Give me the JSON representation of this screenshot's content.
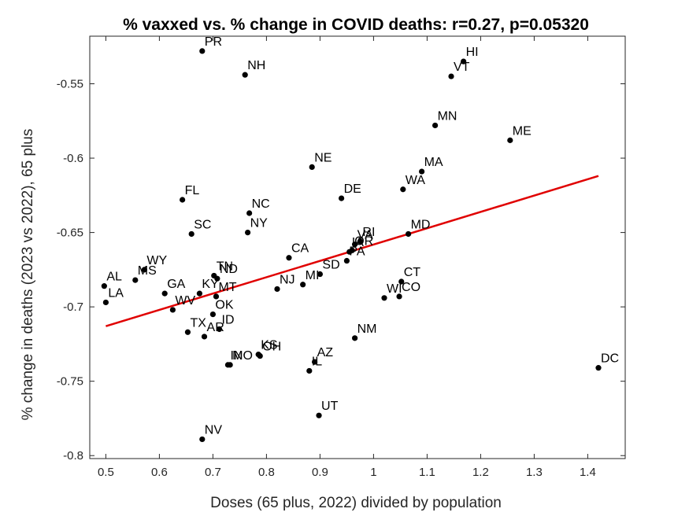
{
  "chart_data": {
    "type": "scatter",
    "title": "% vaxxed vs. % change in COVID deaths: r=0.27, p=0.05320",
    "xlabel": "Doses (65 plus, 2022) divided by population",
    "ylabel": "% change in deaths (2023 vs 2022), 65 plus",
    "xlim": [
      0.47,
      1.47
    ],
    "ylim": [
      -0.802,
      -0.518
    ],
    "xticks": [
      0.5,
      0.6,
      0.7,
      0.8,
      0.9,
      1.0,
      1.1,
      1.2,
      1.3,
      1.4
    ],
    "xtick_labels": [
      "0.5",
      "0.6",
      "0.7",
      "0.8",
      "0.9",
      "1",
      "1.1",
      "1.2",
      "1.3",
      "1.4"
    ],
    "yticks": [
      -0.8,
      -0.75,
      -0.7,
      -0.65,
      -0.6,
      -0.55
    ],
    "ytick_labels": [
      "-0.8",
      "-0.75",
      "-0.7",
      "-0.65",
      "-0.6",
      "-0.55"
    ],
    "grid": false,
    "marker_color": "#000000",
    "fit_color": "#e00000",
    "fit_line": {
      "x": [
        0.5,
        1.42
      ],
      "y": [
        -0.713,
        -0.612
      ]
    },
    "points": [
      {
        "label": "PR",
        "x": 0.68,
        "y": -0.528
      },
      {
        "label": "NH",
        "x": 0.76,
        "y": -0.544
      },
      {
        "label": "HI",
        "x": 1.168,
        "y": -0.535
      },
      {
        "label": "VT",
        "x": 1.145,
        "y": -0.545
      },
      {
        "label": "MN",
        "x": 1.115,
        "y": -0.578
      },
      {
        "label": "ME",
        "x": 1.255,
        "y": -0.588
      },
      {
        "label": "NE",
        "x": 0.885,
        "y": -0.606
      },
      {
        "label": "MA",
        "x": 1.09,
        "y": -0.609
      },
      {
        "label": "WA",
        "x": 1.055,
        "y": -0.621
      },
      {
        "label": "DE",
        "x": 0.94,
        "y": -0.627
      },
      {
        "label": "FL",
        "x": 0.643,
        "y": -0.628
      },
      {
        "label": "NC",
        "x": 0.768,
        "y": -0.637
      },
      {
        "label": "SC",
        "x": 0.66,
        "y": -0.651
      },
      {
        "label": "NY",
        "x": 0.765,
        "y": -0.65
      },
      {
        "label": "MD",
        "x": 1.065,
        "y": -0.651
      },
      {
        "label": "RI",
        "x": 0.975,
        "y": -0.656
      },
      {
        "label": "VA",
        "x": 0.965,
        "y": -0.658
      },
      {
        "label": "IA",
        "x": 0.955,
        "y": -0.663
      },
      {
        "label": "OR",
        "x": 0.96,
        "y": -0.662
      },
      {
        "label": "CA",
        "x": 0.842,
        "y": -0.667
      },
      {
        "label": "PA",
        "x": 0.95,
        "y": -0.669
      },
      {
        "label": "SD",
        "x": 0.9,
        "y": -0.678
      },
      {
        "label": "TN",
        "x": 0.702,
        "y": -0.679
      },
      {
        "label": "ND",
        "x": 0.708,
        "y": -0.681
      },
      {
        "label": "WY",
        "x": 0.572,
        "y": -0.675
      },
      {
        "label": "MS",
        "x": 0.555,
        "y": -0.682
      },
      {
        "label": "AL",
        "x": 0.497,
        "y": -0.686
      },
      {
        "label": "CT",
        "x": 1.052,
        "y": -0.683
      },
      {
        "label": "MI",
        "x": 0.868,
        "y": -0.685
      },
      {
        "label": "NJ",
        "x": 0.82,
        "y": -0.688
      },
      {
        "label": "CO",
        "x": 1.048,
        "y": -0.693
      },
      {
        "label": "WI",
        "x": 1.02,
        "y": -0.694
      },
      {
        "label": "GA",
        "x": 0.61,
        "y": -0.691
      },
      {
        "label": "KY",
        "x": 0.675,
        "y": -0.691
      },
      {
        "label": "MT",
        "x": 0.706,
        "y": -0.693
      },
      {
        "label": "LA",
        "x": 0.5,
        "y": -0.697
      },
      {
        "label": "WV",
        "x": 0.625,
        "y": -0.702
      },
      {
        "label": "OK",
        "x": 0.7,
        "y": -0.705
      },
      {
        "label": "TX",
        "x": 0.653,
        "y": -0.717
      },
      {
        "label": "AR",
        "x": 0.684,
        "y": -0.72
      },
      {
        "label": "ID",
        "x": 0.712,
        "y": -0.715
      },
      {
        "label": "NM",
        "x": 0.965,
        "y": -0.721
      },
      {
        "label": "KS",
        "x": 0.785,
        "y": -0.732
      },
      {
        "label": "OH",
        "x": 0.788,
        "y": -0.733
      },
      {
        "label": "IN",
        "x": 0.728,
        "y": -0.739
      },
      {
        "label": "MO",
        "x": 0.732,
        "y": -0.739
      },
      {
        "label": "AZ",
        "x": 0.89,
        "y": -0.737
      },
      {
        "label": "IL",
        "x": 0.88,
        "y": -0.743
      },
      {
        "label": "DC",
        "x": 1.42,
        "y": -0.741
      },
      {
        "label": "UT",
        "x": 0.898,
        "y": -0.773
      },
      {
        "label": "NV",
        "x": 0.68,
        "y": -0.789
      }
    ]
  }
}
